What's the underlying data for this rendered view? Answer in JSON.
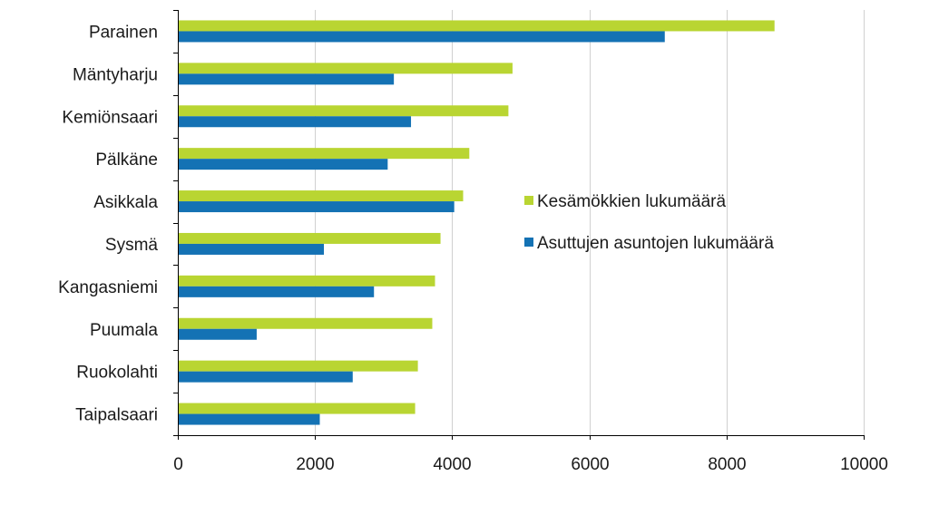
{
  "chart_data": {
    "type": "bar",
    "orientation": "horizontal",
    "title": "",
    "xlabel": "",
    "ylabel": "",
    "categories": [
      "Parainen",
      "Mäntyharju",
      "Kemiönsaari",
      "Pälkäne",
      "Asikkala",
      "Sysmä",
      "Kangasniemi",
      "Puumala",
      "Ruokolahti",
      "Taipalsaari"
    ],
    "series": [
      {
        "name": "Kesämökkien lukumäärä",
        "color": "#b9d532",
        "values": [
          8700,
          4880,
          4820,
          4250,
          4160,
          3830,
          3750,
          3710,
          3500,
          3460
        ]
      },
      {
        "name": "Asuttujen asuntojen lukumäärä",
        "color": "#1472b4",
        "values": [
          7100,
          3150,
          3400,
          3060,
          4030,
          2130,
          2860,
          1150,
          2550,
          2070
        ]
      }
    ],
    "xlim": [
      0,
      10000
    ],
    "xticks": [
      0,
      2000,
      4000,
      6000,
      8000,
      10000
    ],
    "xtick_labels": [
      "0",
      "2000",
      "4000",
      "6000",
      "8000",
      "10000"
    ],
    "grid": "vertical",
    "legend_position": "right-middle"
  }
}
